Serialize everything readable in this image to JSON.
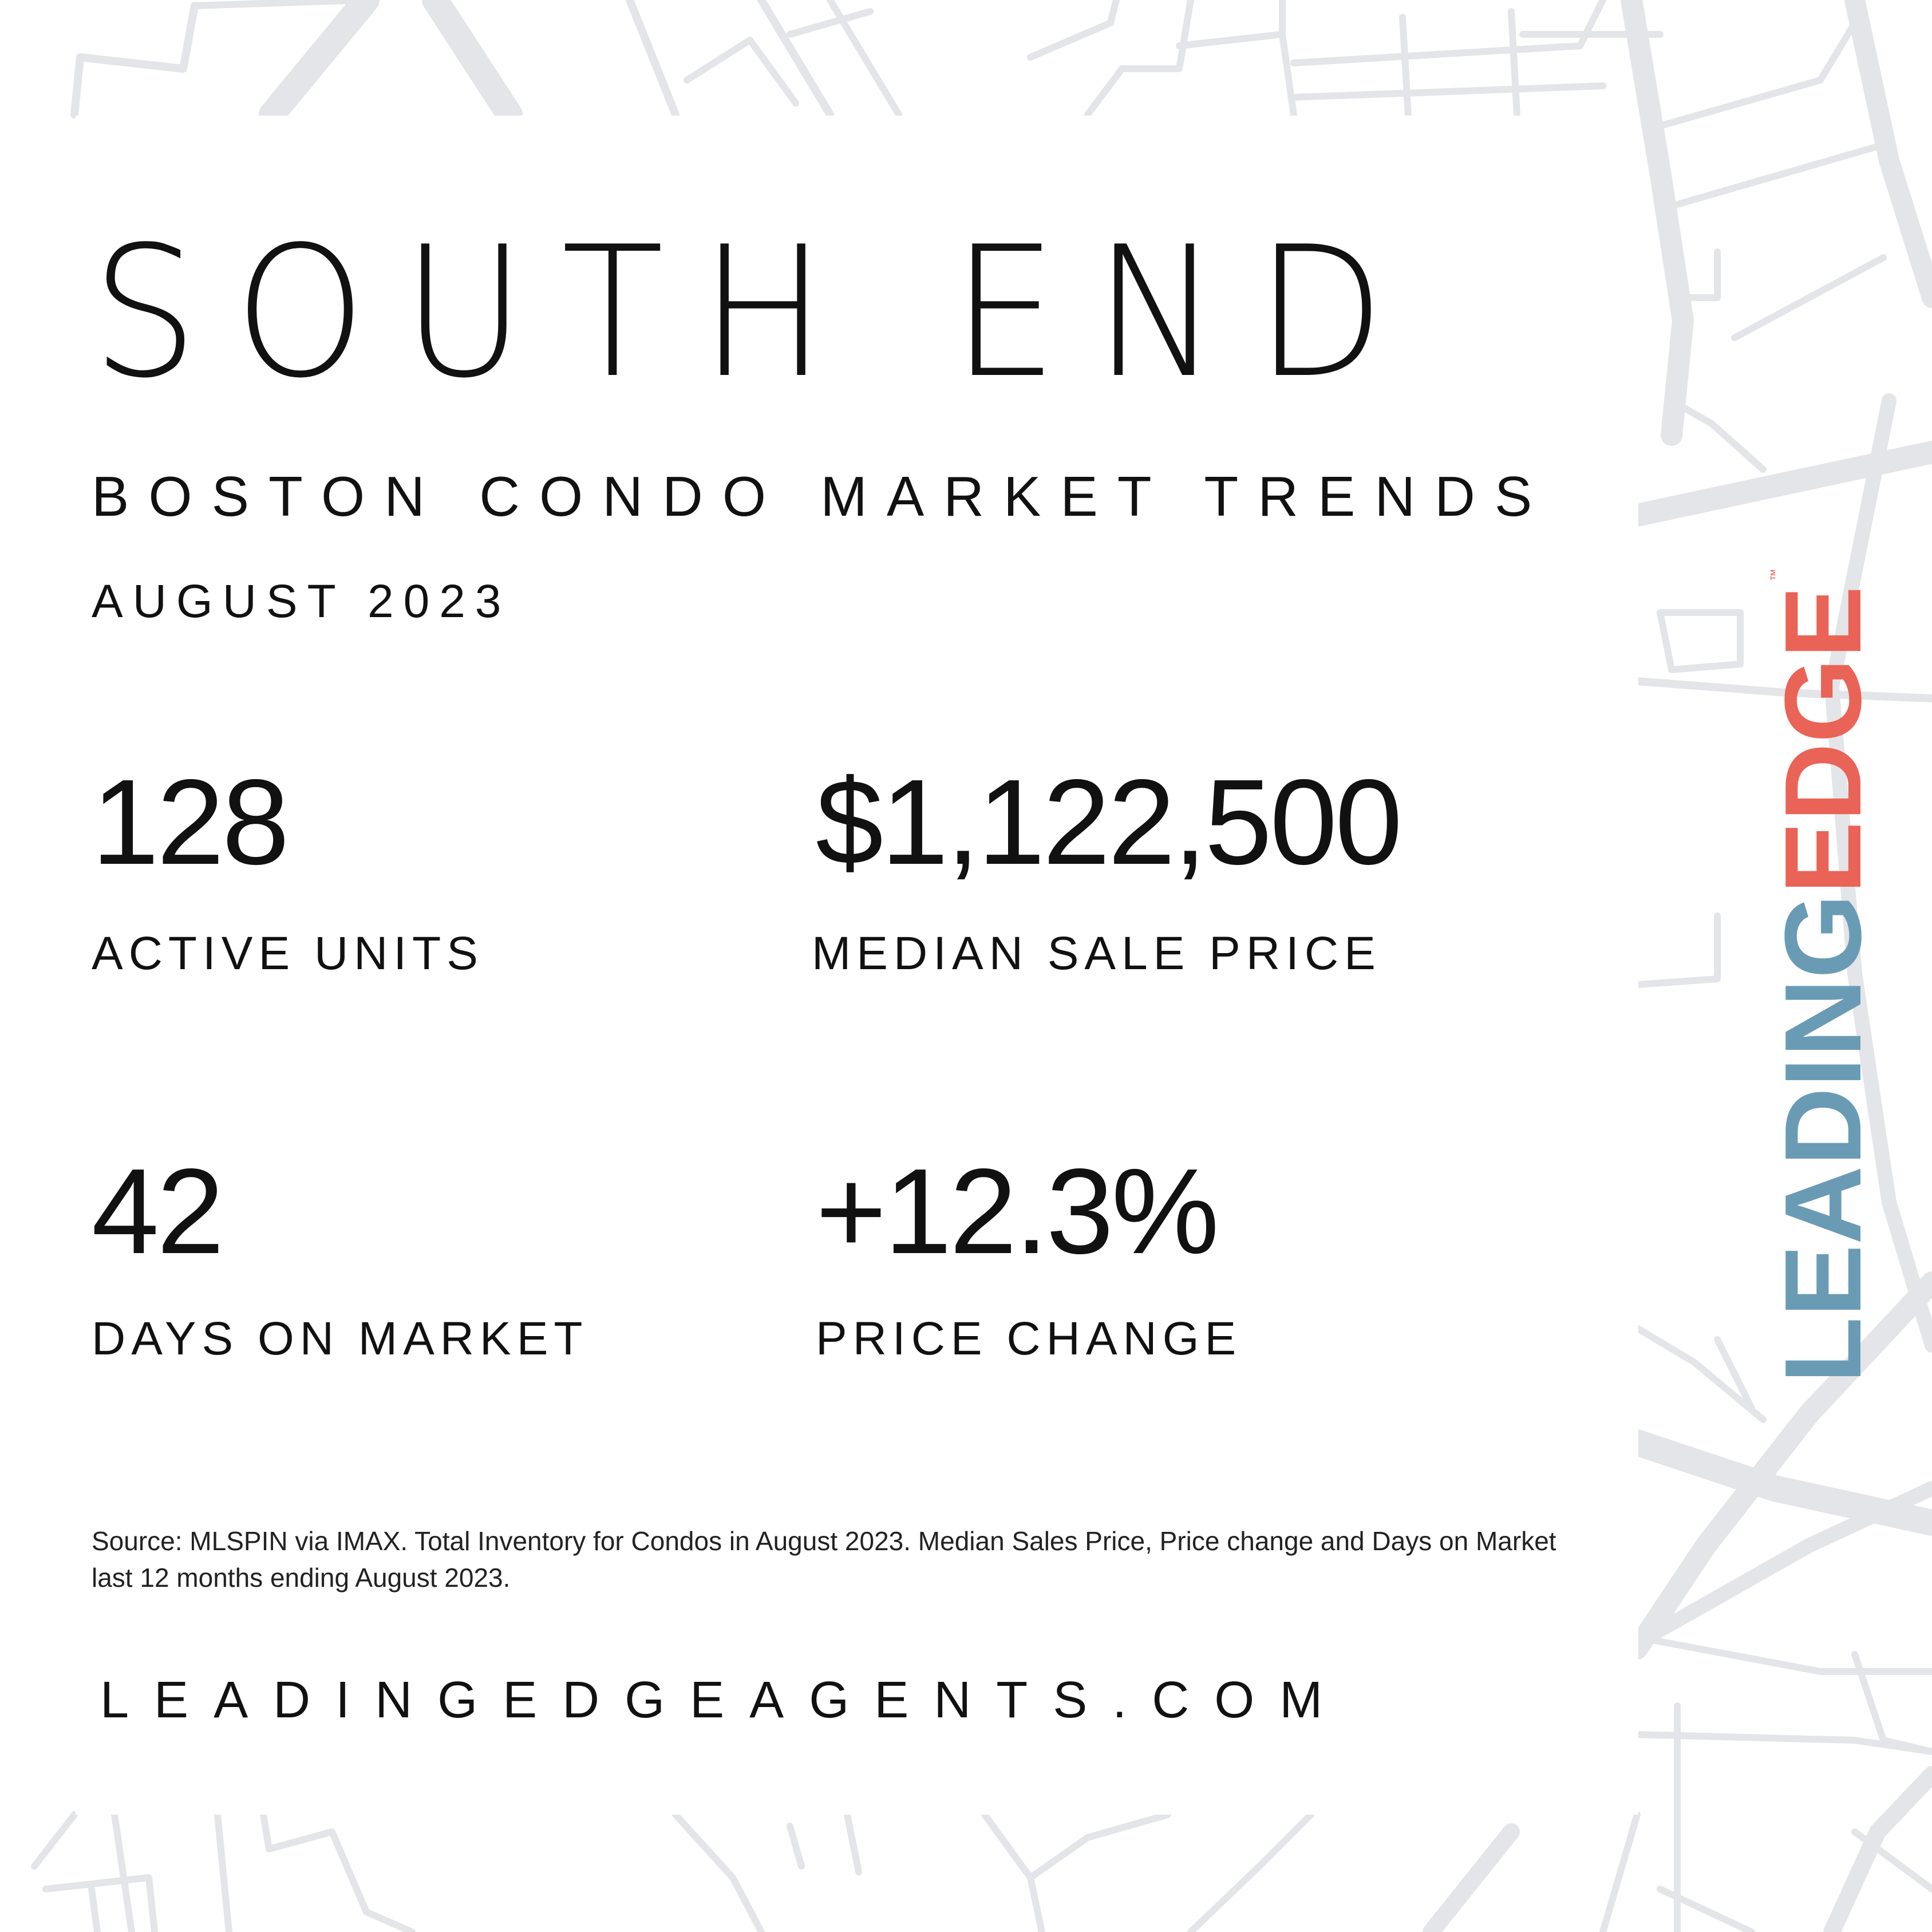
{
  "header": {
    "title": "SOUTH END",
    "subtitle": "BOSTON CONDO MARKET TRENDS",
    "date": "AUGUST 2023"
  },
  "stats": [
    {
      "value": "128",
      "label": "ACTIVE UNITS"
    },
    {
      "value": "$1,122,500",
      "label": "MEDIAN SALE PRICE"
    },
    {
      "value": "42",
      "label": "DAYS ON MARKET"
    },
    {
      "value": "+12.3%",
      "label": "PRICE CHANGE"
    }
  ],
  "footer": {
    "source": "Source: MLSPIN via IMAX. Total Inventory for Condos in August 2023. Median Sales Price, Price change and Days on Market last 12 months ending August 2023.",
    "website": "LEADINGEDGEAGENTS.COM"
  },
  "logo": {
    "part1": "LEADING",
    "part2": "EDGE",
    "trademark": "™",
    "color_part1": "#6a9bb5",
    "color_part2": "#ea6357"
  },
  "background": {
    "map_line_color": "#e3e5e8"
  }
}
